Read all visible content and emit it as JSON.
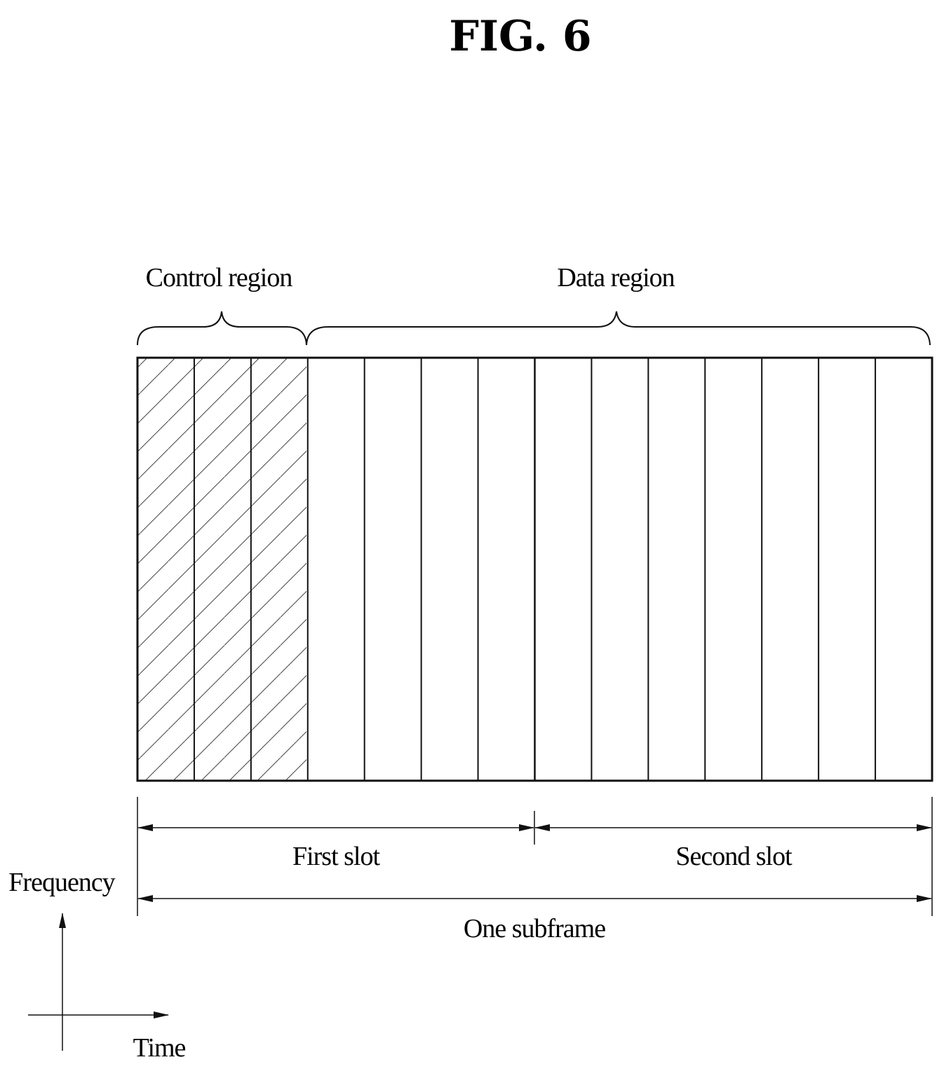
{
  "figure": {
    "title": "FIG. 6"
  },
  "regions": {
    "control_label": "Control region",
    "data_label": "Data region"
  },
  "grid": {
    "symbol_columns": 14,
    "control_columns": 3,
    "columns_per_slot": 7
  },
  "spans": {
    "first_slot": "First slot",
    "second_slot": "Second slot",
    "subframe": "One subframe"
  },
  "axes": {
    "vertical_label": "Frequency",
    "horizontal_label": "Time"
  }
}
